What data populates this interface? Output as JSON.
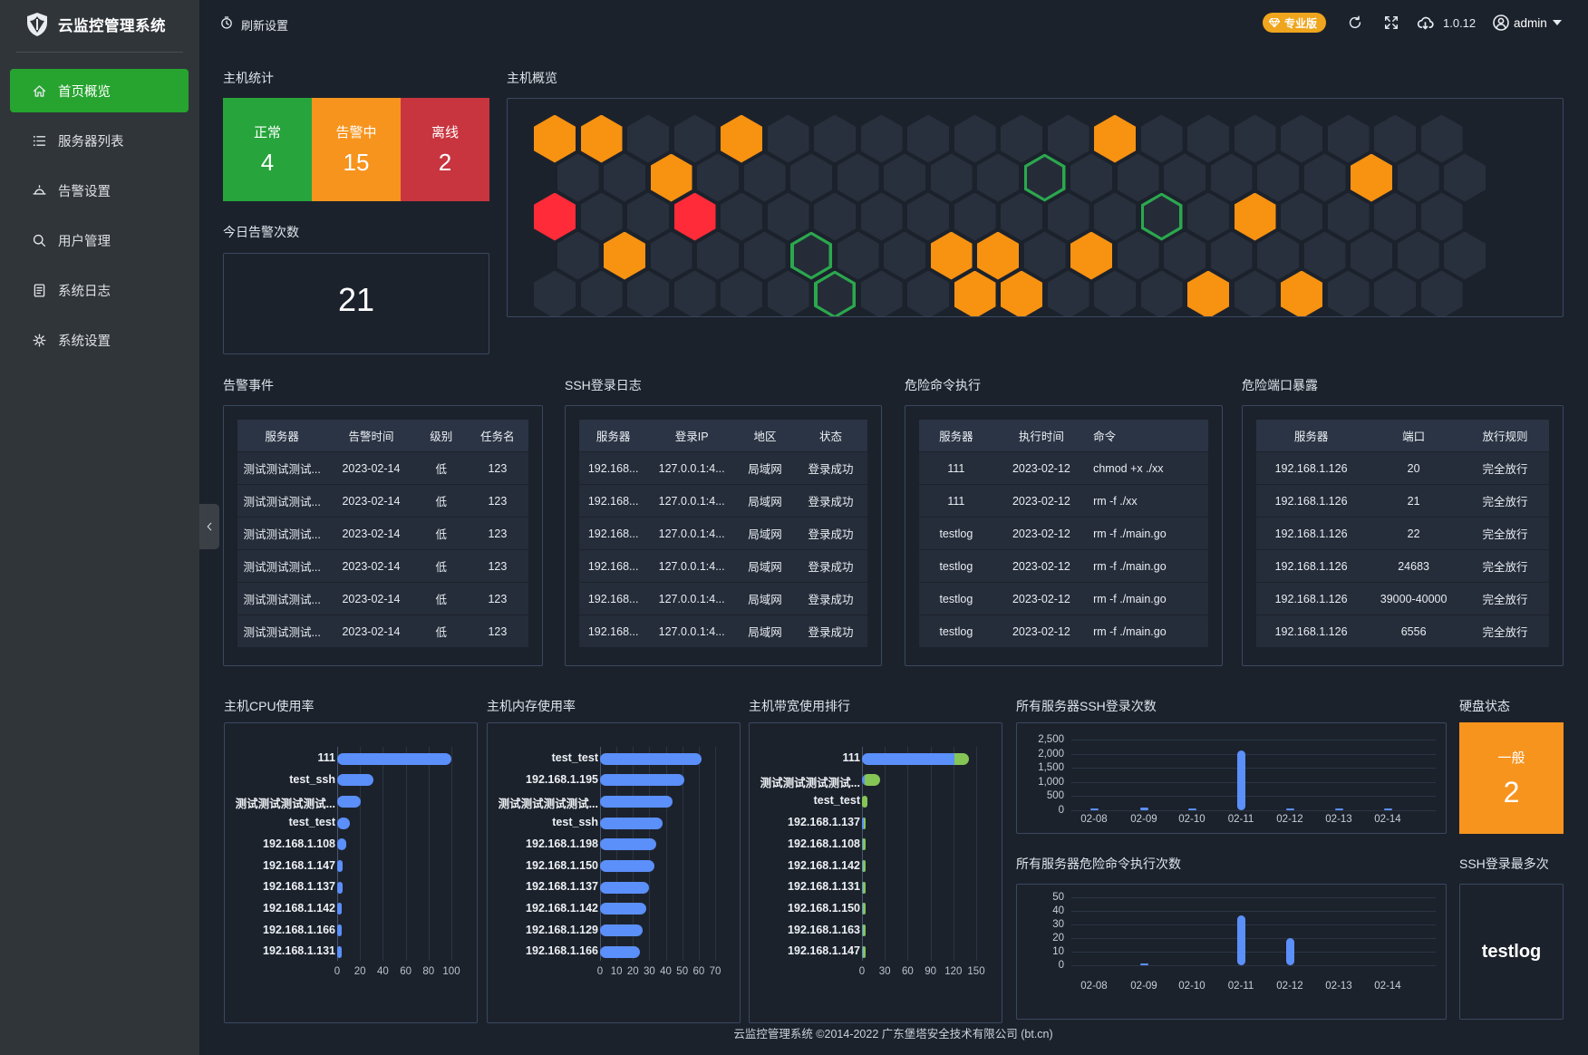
{
  "app": {
    "footer": "云监控管理系统 ©2014-2022 广东堡塔安全技术有限公司 (bt.cn)"
  },
  "sidebar": {
    "logo_text": "云监控管理系统",
    "items": [
      {
        "label": "首页概览",
        "icon": "home-icon",
        "active": true
      },
      {
        "label": "服务器列表",
        "icon": "list-icon",
        "active": false
      },
      {
        "label": "告警设置",
        "icon": "alarm-icon",
        "active": false
      },
      {
        "label": "用户管理",
        "icon": "search-icon",
        "active": false
      },
      {
        "label": "系统日志",
        "icon": "log-icon",
        "active": false
      },
      {
        "label": "系统设置",
        "icon": "gear-icon",
        "active": false
      }
    ],
    "active_color": "#26A42F"
  },
  "topbar": {
    "refresh_settings": "刷新设置",
    "badge_label": "专业版",
    "badge_color": "#EFA51D",
    "version": "1.0.12",
    "username": "admin"
  },
  "host_stats": {
    "title": "主机统计",
    "items": [
      {
        "label": "正常",
        "value": "4",
        "color": "#27A43C"
      },
      {
        "label": "告警中",
        "value": "15",
        "color": "#F7941E"
      },
      {
        "label": "离线",
        "value": "2",
        "color": "#C8353F"
      }
    ]
  },
  "today_alarms": {
    "title": "今日告警次数",
    "value": "21"
  },
  "host_overview": {
    "title": "主机概览",
    "cell_colors": {
      "normal": "#29303D",
      "o": "#F89211",
      "r": "#FF2B38",
      "g": "#2BA84E"
    },
    "grid": [
      "oo..o.......o.......",
      "..o.......g......o..",
      "r..r.........g.o....",
      ".o...g..oo.o........",
      "......g..oo...o.o..."
    ]
  },
  "tables": [
    {
      "title": "告警事件",
      "headers": [
        "服务器",
        "告警时间",
        "级别",
        "任务名"
      ],
      "rows": [
        [
          "测试测试测试...",
          "2023-02-14",
          "低",
          "123"
        ],
        [
          "测试测试测试...",
          "2023-02-14",
          "低",
          "123"
        ],
        [
          "测试测试测试...",
          "2023-02-14",
          "低",
          "123"
        ],
        [
          "测试测试测试...",
          "2023-02-14",
          "低",
          "123"
        ],
        [
          "测试测试测试...",
          "2023-02-14",
          "低",
          "123"
        ],
        [
          "测试测试测试...",
          "2023-02-14",
          "低",
          "123"
        ]
      ]
    },
    {
      "title": "SSH登录日志",
      "headers": [
        "服务器",
        "登录IP",
        "地区",
        "状态"
      ],
      "rows": [
        [
          "192.168...",
          "127.0.0.1:4...",
          "局域网",
          "登录成功"
        ],
        [
          "192.168...",
          "127.0.0.1:4...",
          "局域网",
          "登录成功"
        ],
        [
          "192.168...",
          "127.0.0.1:4...",
          "局域网",
          "登录成功"
        ],
        [
          "192.168...",
          "127.0.0.1:4...",
          "局域网",
          "登录成功"
        ],
        [
          "192.168...",
          "127.0.0.1:4...",
          "局域网",
          "登录成功"
        ],
        [
          "192.168...",
          "127.0.0.1:4...",
          "局域网",
          "登录成功"
        ]
      ]
    },
    {
      "title": "危险命令执行",
      "headers": [
        "服务器",
        "执行时间",
        "命令"
      ],
      "rows": [
        [
          "111",
          "2023-02-12",
          "chmod +x ./xx"
        ],
        [
          "111",
          "2023-02-12",
          "rm -f ./xx"
        ],
        [
          "testlog",
          "2023-02-12",
          "rm -f ./main.go"
        ],
        [
          "testlog",
          "2023-02-12",
          "rm -f ./main.go"
        ],
        [
          "testlog",
          "2023-02-12",
          "rm -f ./main.go"
        ],
        [
          "testlog",
          "2023-02-12",
          "rm -f ./main.go"
        ]
      ]
    },
    {
      "title": "危险端口暴露",
      "headers": [
        "服务器",
        "端口",
        "放行规则"
      ],
      "rows": [
        [
          "192.168.1.126",
          "20",
          "完全放行"
        ],
        [
          "192.168.1.126",
          "21",
          "完全放行"
        ],
        [
          "192.168.1.126",
          "22",
          "完全放行"
        ],
        [
          "192.168.1.126",
          "24683",
          "完全放行"
        ],
        [
          "192.168.1.126",
          "39000-40000",
          "完全放行"
        ],
        [
          "192.168.1.126",
          "6556",
          "完全放行"
        ]
      ]
    }
  ],
  "chart_data": [
    {
      "id": "cpu",
      "type": "bar",
      "orientation": "horizontal",
      "title": "主机CPU使用率",
      "categories": [
        "111",
        "test_ssh",
        "测试测试测试测试...",
        "test_test",
        "192.168.1.108",
        "192.168.1.147",
        "192.168.1.137",
        "192.168.1.142",
        "192.168.1.166",
        "192.168.1.131"
      ],
      "values": [
        100,
        32,
        21,
        11,
        8,
        5,
        5,
        4,
        4,
        4
      ],
      "xticks": [
        0,
        20,
        40,
        60,
        80,
        100
      ],
      "xmax": 100,
      "bar_color": "#5B8FF9"
    },
    {
      "id": "memory",
      "type": "bar",
      "orientation": "horizontal",
      "title": "主机内存使用率",
      "categories": [
        "test_test",
        "192.168.1.195",
        "测试测试测试测试...",
        "test_ssh",
        "192.168.1.198",
        "192.168.1.150",
        "192.168.1.137",
        "192.168.1.142",
        "192.168.1.129",
        "192.168.1.166"
      ],
      "values": [
        62,
        51,
        44,
        38,
        34,
        33,
        30,
        28,
        26,
        24
      ],
      "xticks": [
        0,
        10,
        20,
        30,
        40,
        50,
        60,
        70
      ],
      "xmax": 70,
      "bar_color": "#5B8FF9"
    },
    {
      "id": "bandwidth",
      "type": "bar",
      "orientation": "horizontal",
      "stacked": true,
      "title": "主机带宽使用排行",
      "categories": [
        "111",
        "测试测试测试测试...",
        "test_test",
        "192.168.1.137",
        "192.168.1.108",
        "192.168.1.142",
        "192.168.1.131",
        "192.168.1.150",
        "192.168.1.163",
        "192.168.1.147"
      ],
      "series": [
        {
          "color": "#5B8FF9",
          "values": [
            122,
            4,
            0,
            2,
            1.5,
            1.5,
            1.5,
            1.5,
            1,
            1
          ]
        },
        {
          "color": "#85C556",
          "values": [
            18,
            20,
            7,
            3,
            2,
            2,
            2,
            0,
            1,
            1
          ]
        }
      ],
      "xticks": [
        0,
        30,
        60,
        90,
        120,
        150
      ],
      "xmax": 150
    },
    {
      "id": "ssh_logins",
      "type": "bar",
      "orientation": "vertical",
      "title": "所有服务器SSH登录次数",
      "categories": [
        "02-08",
        "02-09",
        "02-10",
        "02-11",
        "02-12",
        "02-13",
        "02-14"
      ],
      "values": [
        30,
        90,
        45,
        2100,
        45,
        75,
        45
      ],
      "ymax": 2500,
      "ytick_labels": [
        "0",
        "500",
        "1,000",
        "1,500",
        "2,000",
        "2,500"
      ],
      "bar_color": "#5B8FF9"
    },
    {
      "id": "cmd_exec",
      "type": "bar",
      "orientation": "vertical",
      "title": "所有服务器危险命令执行次数",
      "categories": [
        "02-08",
        "02-09",
        "02-10",
        "02-11",
        "02-12",
        "02-13",
        "02-14"
      ],
      "values": [
        0,
        1,
        0,
        37,
        20,
        0,
        0
      ],
      "ymax": 50,
      "ytick_labels": [
        "0",
        "10",
        "20",
        "30",
        "40",
        "50"
      ],
      "bar_color": "#5B8FF9"
    }
  ],
  "disk_status": {
    "title": "硬盘状态",
    "label": "一般",
    "value": "2",
    "color": "#F7941E"
  },
  "ssh_most": {
    "title": "SSH登录最多次",
    "value": "testlog"
  }
}
